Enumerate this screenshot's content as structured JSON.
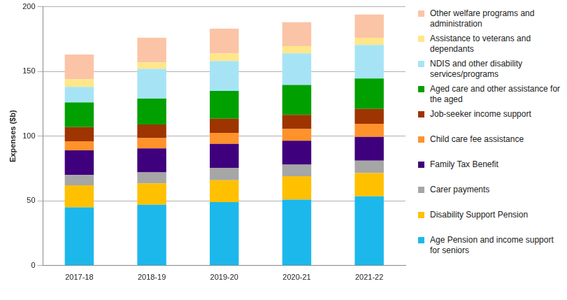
{
  "chart_data": {
    "type": "bar",
    "stacked": true,
    "grid": true,
    "legend": "right",
    "y_label": "Expenses ($b)",
    "categories": [
      "2017-18",
      "2018-19",
      "2019-20",
      "2020-21",
      "2021-22"
    ],
    "ylim": [
      0,
      200
    ],
    "yticks": [
      0,
      50,
      100,
      150,
      200
    ],
    "series": [
      {
        "name": "Age Pension and income support for seniors",
        "color": "#1cb8ec",
        "values": [
          45,
          47,
          49,
          51,
          53.5
        ]
      },
      {
        "name": "Disability Support Pension",
        "color": "#ffc000",
        "values": [
          17,
          16.5,
          17,
          18,
          18
        ]
      },
      {
        "name": "Carer payments",
        "color": "#a6a6a6",
        "values": [
          8,
          8.5,
          9.5,
          9,
          9.5
        ]
      },
      {
        "name": "Family Tax Benefit",
        "color": "#3f007d",
        "values": [
          19,
          18.5,
          18.5,
          18.5,
          18.5
        ]
      },
      {
        "name": "Child care fee assistance",
        "color": "#ff922b",
        "values": [
          7,
          8,
          8.5,
          9,
          10
        ]
      },
      {
        "name": "Job-seeker income support",
        "color": "#9e3400",
        "values": [
          11,
          10.5,
          11,
          11,
          11.5
        ]
      },
      {
        "name": "Aged care and other assistance for the aged",
        "color": "#00a000",
        "values": [
          19,
          20,
          21.5,
          23,
          23.5
        ]
      },
      {
        "name": "NDIS and other disability services/programs",
        "color": "#a6e4f5",
        "values": [
          12,
          23,
          23,
          24.5,
          26
        ]
      },
      {
        "name": "Assistance to veterans and dependants",
        "color": "#ffe68a",
        "values": [
          6,
          5,
          6,
          5.5,
          5.5
        ]
      },
      {
        "name": "Other welfare programs and administration",
        "color": "#fbc4a6",
        "values": [
          19,
          19,
          19,
          18.5,
          18
        ]
      }
    ]
  }
}
